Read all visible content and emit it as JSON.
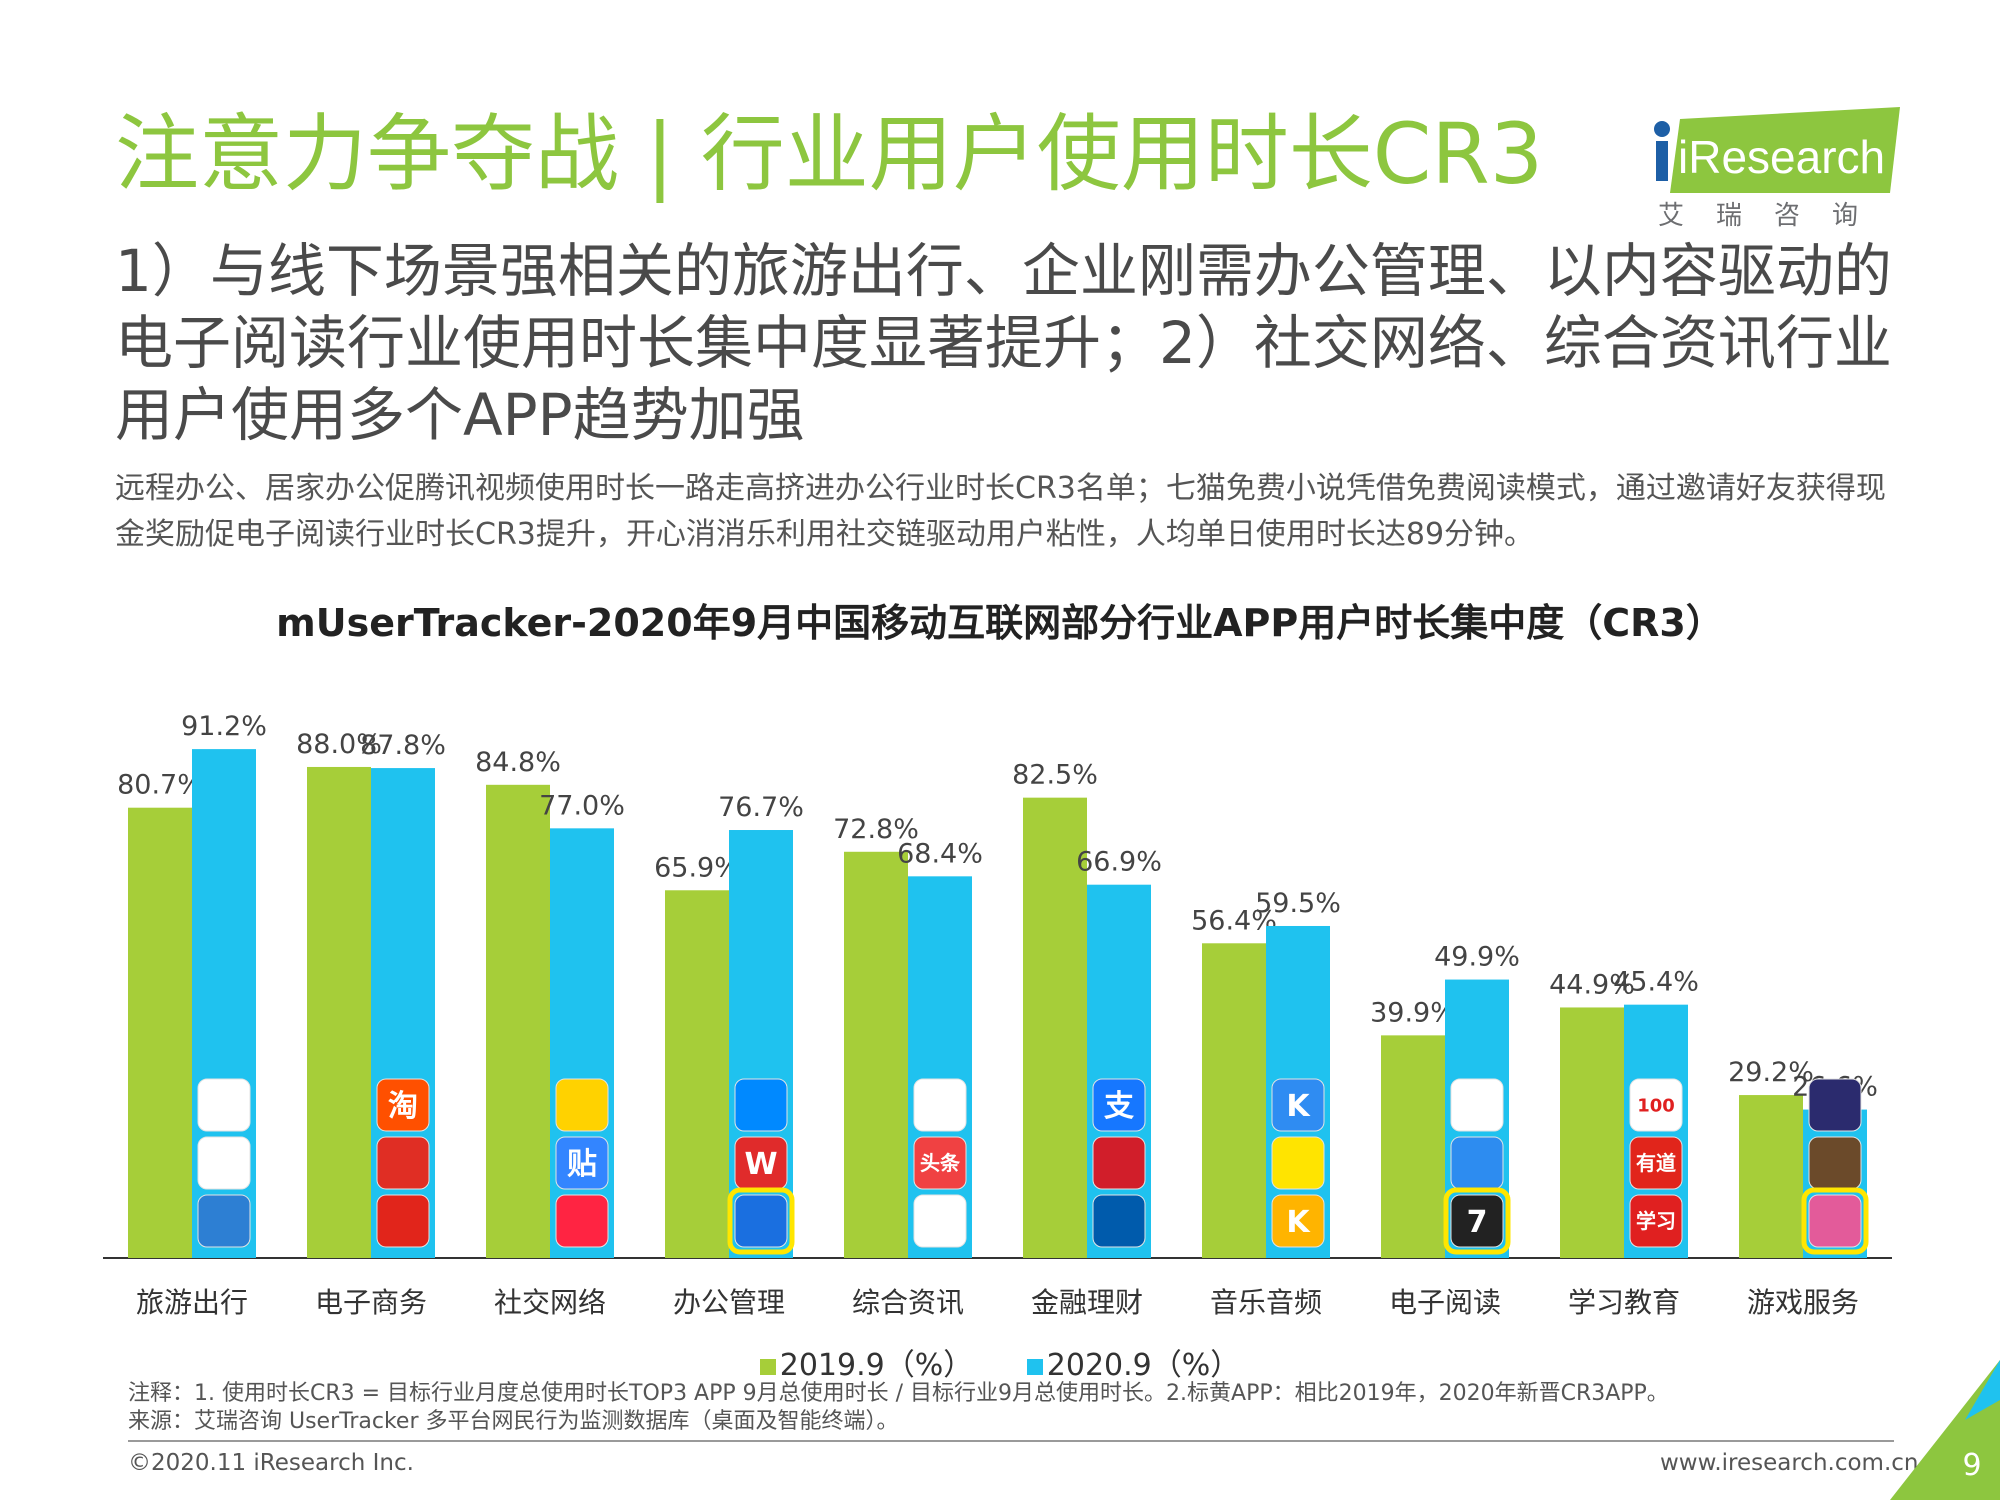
{
  "header": {
    "title": "注意力争夺战 | 行业用户使用时长CR3",
    "logo_text": "iResearch",
    "logo_cn": "艾瑞咨询"
  },
  "subtitle": "1）与线下场景强相关的旅游出行、企业刚需办公管理、以内容驱动的电子阅读行业使用时长集中度显著提升；2）社交网络、综合资讯行业用户使用多个APP趋势加强",
  "description": "远程办公、居家办公促腾讯视频使用时长一路走高挤进办公行业时长CR3名单；七猫免费小说凭借免费阅读模式，通过邀请好友获得现金奖励促电子阅读行业时长CR3提升，开心消消乐利用社交链驱动用户粘性，人均单日使用时长达89分钟。",
  "chart_data": {
    "type": "bar",
    "title": "mUserTracker-2020年9月中国移动互联网部分行业APP用户时长集中度（CR3）",
    "categories": [
      "旅游出行",
      "电子商务",
      "社交网络",
      "办公管理",
      "综合资讯",
      "金融理财",
      "音乐音频",
      "电子阅读",
      "学习教育",
      "游戏服务"
    ],
    "series": [
      {
        "name": "2019.9（%）",
        "color": "#a6ce39",
        "values": [
          80.7,
          88.0,
          84.8,
          65.9,
          72.8,
          82.5,
          56.4,
          39.9,
          44.9,
          29.2
        ]
      },
      {
        "name": "2020.9（%）",
        "color": "#1fc2ef",
        "values": [
          91.2,
          87.8,
          77.0,
          76.7,
          68.4,
          66.9,
          59.5,
          49.9,
          45.4,
          26.6
        ]
      }
    ],
    "value_labels": {
      "2019.9（%）": [
        "80.7%",
        "88.0%",
        "84.8%",
        "65.9%",
        "72.8%",
        "82.5%",
        "56.4%",
        "39.9%",
        "44.9%",
        "29.2%"
      ],
      "2020.9（%）": [
        "91.2%",
        "87.8%",
        "77.0%",
        "76.7%",
        "68.4%",
        "66.9%",
        "59.5%",
        "49.9%",
        "45.4%",
        "26.6%"
      ]
    },
    "ylim": [
      0,
      100
    ],
    "grid": false,
    "legend_position": "bottom",
    "app_icons": [
      [
        {
          "icon": "feizhu-plane-icon",
          "color": "#ffffff"
        },
        {
          "icon": "baidu-map-icon",
          "color": "#ffffff"
        },
        {
          "icon": "xiecheng-icon",
          "color": "#2d7fd3"
        }
      ],
      [
        {
          "icon": "taobao-icon",
          "color": "#ff5000",
          "label": "淘"
        },
        {
          "icon": "pinduoduo-icon",
          "color": "#e02e24"
        },
        {
          "icon": "jd-icon",
          "color": "#e1251b"
        }
      ],
      [
        {
          "icon": "weibo-icon",
          "color": "#ffd200"
        },
        {
          "icon": "tieba-icon",
          "color": "#3385ff",
          "label": "贴"
        },
        {
          "icon": "xiaohongshu-icon",
          "color": "#ff2442"
        }
      ],
      [
        {
          "icon": "dingtalk-icon",
          "color": "#0089ff"
        },
        {
          "icon": "wps-icon",
          "color": "#e02b2b",
          "label": "W"
        },
        {
          "icon": "tencent-video-icon",
          "color": "#1a6fe0",
          "new": true
        }
      ],
      [
        {
          "icon": "tencent-news-icon",
          "color": "#ffffff"
        },
        {
          "icon": "toutiao-icon",
          "color": "#f04142",
          "label": "头条"
        },
        {
          "icon": "sina-icon",
          "color": "#ffffff"
        }
      ],
      [
        {
          "icon": "alipay-icon",
          "color": "#1677ff",
          "label": "支"
        },
        {
          "icon": "poker-icon",
          "color": "#d11e2a"
        },
        {
          "icon": "ccb-icon",
          "color": "#005bac"
        }
      ],
      [
        {
          "icon": "kugou-icon",
          "color": "#2f8cf2",
          "label": "K"
        },
        {
          "icon": "qq-music-icon",
          "color": "#ffe400"
        },
        {
          "icon": "kuwo-icon",
          "color": "#ffb400",
          "label": "K"
        }
      ],
      [
        {
          "icon": "book-icon",
          "color": "#ffffff"
        },
        {
          "icon": "qq-reader-icon",
          "color": "#2d8cf0"
        },
        {
          "icon": "qimao-icon",
          "color": "#222222",
          "label": "7",
          "new": true
        }
      ],
      [
        {
          "icon": "zuoyebang-icon",
          "color": "#ffffff",
          "label": "100"
        },
        {
          "icon": "youdao-icon",
          "color": "#e1251b",
          "label": "有道"
        },
        {
          "icon": "xuexi-icon",
          "color": "#e02020",
          "label": "学习"
        }
      ],
      [
        {
          "icon": "wangzhe-icon",
          "color": "#2b2b6e"
        },
        {
          "icon": "game-character-icon",
          "color": "#6b4a2a"
        },
        {
          "icon": "xiaoxiaole-icon",
          "color": "#e35b9a",
          "new": true
        }
      ]
    ]
  },
  "notes": {
    "line1": "注释：1. 使用时长CR3 = 目标行业月度总使用时长TOP3 APP 9月总使用时长 / 目标行业9月总使用时长。2.标黄APP：相比2019年，2020年新晋CR3APP。",
    "line2": "来源：艾瑞咨询 UserTracker 多平台网民行为监测数据库（桌面及智能终端）。"
  },
  "footer": {
    "copyright": "©2020.11 iResearch Inc.",
    "website": "www.iresearch.com.cn",
    "page": "9"
  },
  "colors": {
    "title_green": "#8dc63f",
    "bar_2019": "#a6ce39",
    "bar_2020": "#1fc2ef",
    "highlight": "#ffe600"
  }
}
